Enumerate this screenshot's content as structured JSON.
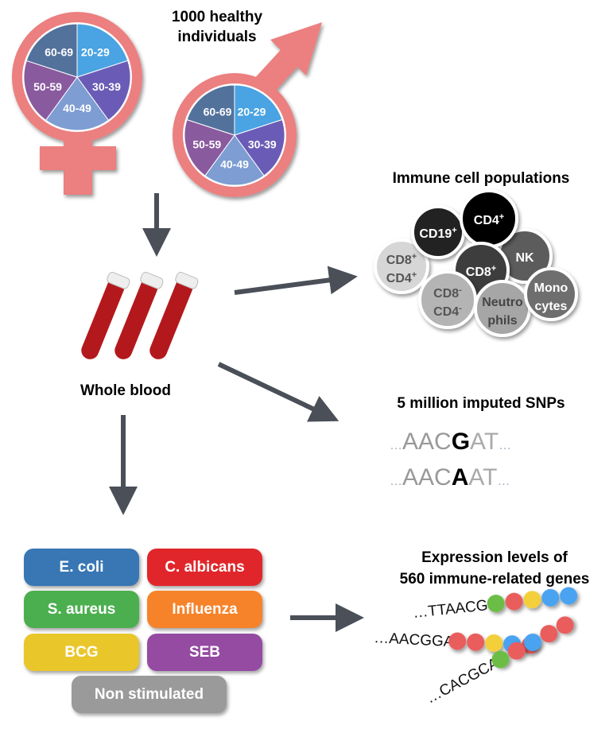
{
  "header": {
    "line1": "1000 healthy",
    "line2": "individuals"
  },
  "age_groups": [
    "20-29",
    "30-39",
    "40-49",
    "50-59",
    "60-69"
  ],
  "age_colors": [
    "#4aa3e2",
    "#6a5cb6",
    "#7d9dd3",
    "#8a5a9f",
    "#52729c"
  ],
  "symbol_color": "#ec7f7f",
  "whole_blood": "Whole blood",
  "immune": {
    "title": "Immune cell populations",
    "cells": [
      {
        "l1": "CD8",
        "s1": "+",
        "l2": "CD4",
        "s2": "+",
        "fill": "#d6d6d6",
        "text": "#555555"
      },
      {
        "l1": "CD19",
        "s1": "+",
        "fill": "#222222",
        "text": "#ffffff"
      },
      {
        "l1": "NK",
        "fill": "#5c5c5c",
        "text": "#ffffff"
      },
      {
        "l1": "CD4",
        "s1": "+",
        "fill": "#000000",
        "text": "#ffffff"
      },
      {
        "l1": "CD8",
        "s1": "+",
        "fill": "#3c3c3c",
        "text": "#ffffff"
      },
      {
        "l1": "CD8",
        "s1": "-",
        "l2": "CD4",
        "s2": "-",
        "fill": "#b4b4b4",
        "text": "#555555"
      },
      {
        "l1": "Neutro",
        "l2": "phils",
        "fill": "#a6a6a6",
        "text": "#444444"
      },
      {
        "l1": "Mono",
        "l2": "cytes",
        "fill": "#6e6e6e",
        "text": "#ffffff"
      }
    ]
  },
  "snps": {
    "title": "5 million imputed SNPs",
    "rows": [
      {
        "pre": "…",
        "left": "AAC",
        "variant": "G",
        "right": "AT",
        "post": "…"
      },
      {
        "pre": "…",
        "left": "AAC",
        "variant": "A",
        "right": "AT",
        "post": "…"
      }
    ]
  },
  "stimuli": [
    {
      "label": "E. coli",
      "color": "#3877b4"
    },
    {
      "label": "C. albicans",
      "color": "#e1262b"
    },
    {
      "label": "S. aureus",
      "color": "#4caf4f"
    },
    {
      "label": "Influenza",
      "color": "#f6832a"
    },
    {
      "label": "BCG",
      "color": "#e9c72b"
    },
    {
      "label": "SEB",
      "color": "#944ba1"
    },
    {
      "label": "Non stimulated",
      "color": "#9a9a9a"
    }
  ],
  "expression": {
    "line1": "Expression levels of",
    "line2": "560 immune-related genes",
    "rows": [
      {
        "seq": "…TTAACGG",
        "beads": [
          "#6cbd45",
          "#e95d5d",
          "#f3cf3a",
          "#4aa3f0",
          "#4aa3f0"
        ]
      },
      {
        "seq": "…AACGGAT",
        "beads": [
          "#e95d5d",
          "#e95d5d",
          "#f3cf3a",
          "#4aa3f0",
          "#e95d5d"
        ]
      },
      {
        "seq": "…CACGCAA",
        "beads": [
          "#6cbd45",
          "#e95d5d",
          "#4aa3f0",
          "#e95d5d",
          "#e95d5d"
        ]
      }
    ]
  },
  "arrow_color": "#4a4f58"
}
